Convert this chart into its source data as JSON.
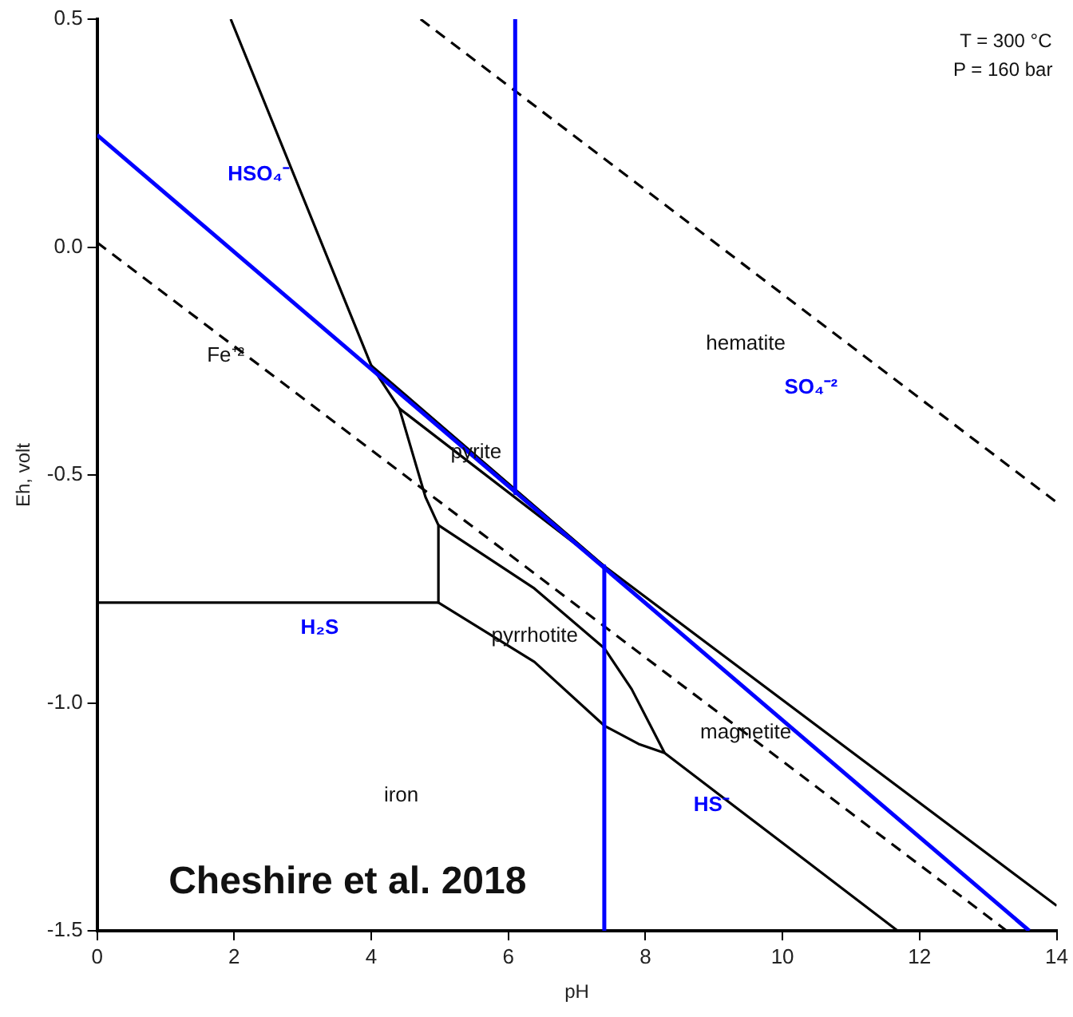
{
  "chart_data": {
    "type": "line",
    "xlabel": "pH",
    "ylabel": "Eh, volt",
    "xlim": [
      0,
      14
    ],
    "xticks": [
      0,
      2,
      4,
      6,
      8,
      10,
      12,
      14
    ],
    "ylim": [
      -1.5,
      0.5
    ],
    "yticks": [
      {
        "value": 0.5,
        "label": "0.5"
      },
      {
        "value": 0,
        "label": "0.0"
      },
      {
        "value": -0.5,
        "label": "-0.5"
      },
      {
        "value": -1,
        "label": "-1.0"
      },
      {
        "value": -1.5,
        "label": "-1.5"
      }
    ],
    "grid": false,
    "legend": false,
    "marker": "none",
    "series": [
      {
        "color": "#0000ff",
        "x": [
          0,
          13.6
        ],
        "values": [
          0.246,
          -1.5
        ]
      },
      {
        "color": "#0000ff",
        "x": [
          6.1,
          6.1
        ],
        "values": [
          0.5,
          -0.54
        ]
      },
      {
        "color": "#0000ff",
        "x": [
          7.4,
          7.4
        ],
        "values": [
          -0.7,
          -1.5
        ]
      },
      {
        "color": "#000000",
        "line_style": "dashed",
        "x": [
          4.72,
          14
        ],
        "values": [
          0.5,
          -0.56
        ]
      },
      {
        "color": "#000000",
        "line_style": "dashed",
        "x": [
          0,
          13.27
        ],
        "values": [
          0.01,
          -1.5
        ]
      },
      {
        "color": "#000000",
        "x": [
          1.95,
          4.0,
          4.41,
          4.79,
          4.98,
          4.98,
          6.38,
          7.4,
          7.9,
          8.28,
          11.68
        ],
        "values": [
          0.5,
          -0.26,
          -0.354,
          -0.548,
          -0.61,
          -0.78,
          -0.91,
          -1.05,
          -1.09,
          -1.11,
          -1.5
        ]
      },
      {
        "color": "#000000",
        "x": [
          0,
          4.98
        ],
        "values": [
          -0.78,
          -0.78
        ]
      },
      {
        "color": "#000000",
        "x": [
          4.0,
          7.4,
          14
        ],
        "values": [
          -0.26,
          -0.7,
          -1.445
        ]
      },
      {
        "color": "#000000",
        "x": [
          4.41,
          7.4
        ],
        "values": [
          -0.354,
          -0.7
        ]
      },
      {
        "color": "#000000",
        "x": [
          4.98,
          6.38,
          7.4,
          7.8,
          8.28
        ],
        "values": [
          -0.61,
          -0.749,
          -0.88,
          -0.97,
          -1.11
        ]
      }
    ],
    "annotations": [
      "HSO₄⁻",
      "Fe⁺²",
      "hematite",
      "SO₄⁻²",
      "pyrite",
      "H₂S",
      "pyrrhotite",
      "magnetite",
      "HS⁻",
      "iron",
      "T = 300 °C",
      "P = 160 bar",
      "Cheshire et al. 2018"
    ]
  }
}
